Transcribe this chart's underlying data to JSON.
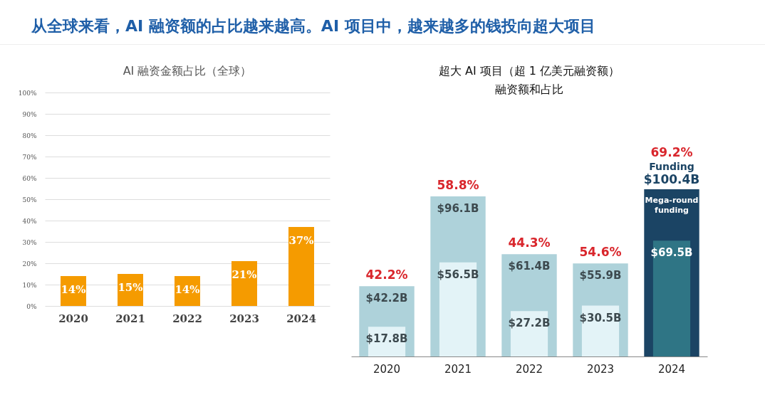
{
  "chart_data": [
    {
      "type": "bar",
      "title": "AI 融资金额占比（全球）",
      "annotations": [
        "从全球来看，AI 融资额的占比越来越高。AI 项目中，越来越多的钱投向超大项目"
      ],
      "categories": [
        "2020",
        "2021",
        "2022",
        "2023",
        "2024"
      ],
      "values": [
        14,
        15,
        14,
        21,
        37
      ],
      "color": "#f59b00",
      "value_labels": [
        "14%",
        "15%",
        "14%",
        "21%",
        "37%"
      ],
      "ylim": [
        0,
        100
      ],
      "yticks": [
        {
          "value": 0,
          "label": "0%"
        },
        {
          "value": 10,
          "label": "10%"
        },
        {
          "value": 20,
          "label": "20%"
        },
        {
          "value": 30,
          "label": "30%"
        },
        {
          "value": 40,
          "label": "40%"
        },
        {
          "value": 50,
          "label": "50%"
        },
        {
          "value": 60,
          "label": "60%"
        },
        {
          "value": 70,
          "label": "70%"
        },
        {
          "value": 80,
          "label": "80%"
        },
        {
          "value": 90,
          "label": "90%"
        },
        {
          "value": 100,
          "label": "100%"
        }
      ],
      "grid": "y"
    },
    {
      "type": "bar",
      "title": "超大 AI 项目（超 1 亿美元融资额）",
      "subtitle": "融资额和占比",
      "categories": [
        "2020",
        "2021",
        "2022",
        "2023",
        "2024"
      ],
      "series": [
        {
          "name": "Funding",
          "colors": [
            "#aed2da",
            "#aed2da",
            "#aed2da",
            "#aed2da",
            "#1b4464"
          ],
          "values": [
            42.2,
            96.1,
            61.4,
            55.9,
            100.4
          ],
          "value_labels": [
            "$42.2B",
            "$96.1B",
            "$61.4B",
            "$55.9B",
            "$100.4B"
          ]
        },
        {
          "name": "Mega-round funding",
          "colors": [
            "#e3f3f7",
            "#e3f3f7",
            "#e3f3f7",
            "#e3f3f7",
            "#2f7585"
          ],
          "values": [
            17.8,
            56.5,
            27.2,
            30.5,
            69.5
          ],
          "value_labels": [
            "$17.8B",
            "$56.5B",
            "$27.2B",
            "$30.5B",
            "$69.5B"
          ]
        }
      ],
      "annotations": [
        {
          "text": "42.2%",
          "x": "2020",
          "y": 42.2
        },
        {
          "text": "58.8%",
          "x": "2021",
          "y": 96.1
        },
        {
          "text": "44.3%",
          "x": "2022",
          "y": 61.4
        },
        {
          "text": "54.6%",
          "x": "2023",
          "y": 55.9
        },
        {
          "text": "69.2%",
          "x": "2024",
          "y": 100.4
        }
      ]
    }
  ]
}
